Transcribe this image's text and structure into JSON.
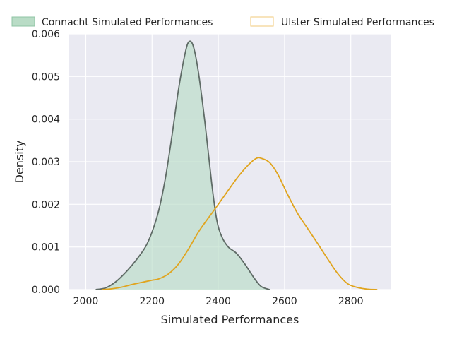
{
  "chart_data": {
    "type": "area",
    "title": "",
    "xlabel": "Simulated Performances",
    "ylabel": "Density",
    "xlim": [
      1950,
      2920
    ],
    "ylim": [
      0,
      0.006
    ],
    "x_ticks": [
      2000,
      2200,
      2400,
      2600,
      2800
    ],
    "y_ticks": [
      0.0,
      0.001,
      0.002,
      0.003,
      0.004,
      0.005,
      0.006
    ],
    "grid": true,
    "legend_position": "top",
    "series": [
      {
        "name": "Connacht Simulated Performances",
        "color": "#5f6b66",
        "fill": "#b9dcc6",
        "filled": true,
        "points": [
          [
            2030,
            0.0
          ],
          [
            2060,
            4e-05
          ],
          [
            2090,
            0.00018
          ],
          [
            2120,
            0.0004
          ],
          [
            2150,
            0.00067
          ],
          [
            2180,
            0.001
          ],
          [
            2200,
            0.00135
          ],
          [
            2220,
            0.00185
          ],
          [
            2240,
            0.0026
          ],
          [
            2260,
            0.0036
          ],
          [
            2280,
            0.0047
          ],
          [
            2300,
            0.00555
          ],
          [
            2312,
            0.00582
          ],
          [
            2325,
            0.0057
          ],
          [
            2340,
            0.0051
          ],
          [
            2360,
            0.0039
          ],
          [
            2380,
            0.0025
          ],
          [
            2395,
            0.00165
          ],
          [
            2410,
            0.00125
          ],
          [
            2430,
            0.001
          ],
          [
            2455,
            0.00085
          ],
          [
            2480,
            0.0006
          ],
          [
            2510,
            0.00025
          ],
          [
            2530,
            7e-05
          ],
          [
            2555,
            0.0
          ]
        ]
      },
      {
        "name": "Ulster Simulated Performances",
        "color": "#e0a41e",
        "fill": "none",
        "filled": false,
        "points": [
          [
            2050,
            0.0
          ],
          [
            2080,
            2e-05
          ],
          [
            2110,
            6e-05
          ],
          [
            2140,
            0.00012
          ],
          [
            2170,
            0.00017
          ],
          [
            2200,
            0.00022
          ],
          [
            2220,
            0.00025
          ],
          [
            2250,
            0.00037
          ],
          [
            2280,
            0.0006
          ],
          [
            2310,
            0.00095
          ],
          [
            2340,
            0.00135
          ],
          [
            2370,
            0.00168
          ],
          [
            2400,
            0.002
          ],
          [
            2430,
            0.00233
          ],
          [
            2460,
            0.00265
          ],
          [
            2490,
            0.00292
          ],
          [
            2515,
            0.00308
          ],
          [
            2530,
            0.00308
          ],
          [
            2555,
            0.00298
          ],
          [
            2580,
            0.0027
          ],
          [
            2610,
            0.00222
          ],
          [
            2640,
            0.00178
          ],
          [
            2670,
            0.00143
          ],
          [
            2700,
            0.00108
          ],
          [
            2730,
            0.00072
          ],
          [
            2760,
            0.00038
          ],
          [
            2790,
            0.00014
          ],
          [
            2820,
            5e-05
          ],
          [
            2850,
            1e-05
          ],
          [
            2880,
            0.0
          ]
        ]
      }
    ]
  }
}
